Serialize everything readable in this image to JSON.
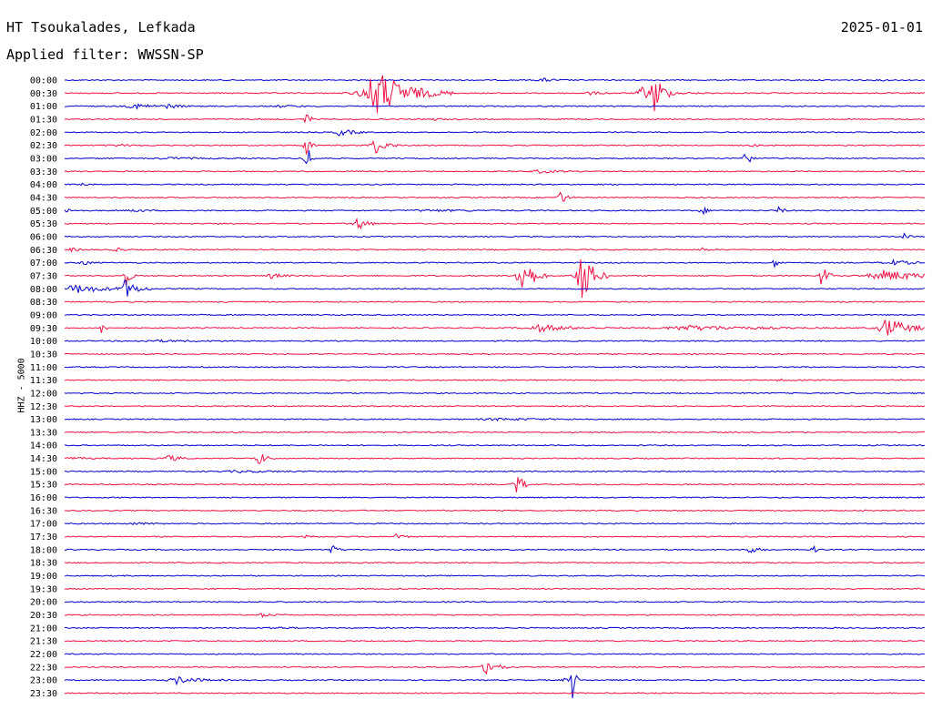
{
  "header": {
    "station": "HT Tsoukalades, Lefkada",
    "date": "2025-01-01",
    "filter_text": "Applied filter: WWSSN-SP"
  },
  "chart_data": {
    "type": "line",
    "title": "HT Tsoukalades, Lefkada",
    "subtitle": "Applied filter: WWSSN-SP",
    "ylabel": "HHZ - 5000",
    "colors": [
      "#0000cc",
      "#ee1144"
    ],
    "rows": [
      {
        "label": "00:00",
        "color": "#0000cc",
        "events": [
          {
            "x": 0.555,
            "amp": 2,
            "w": 0.012
          },
          {
            "x": 0.95,
            "amp": 1,
            "w": 0.005
          }
        ]
      },
      {
        "label": "00:30",
        "color": "#ee1144",
        "events": [
          {
            "x": 0.36,
            "amp": 28,
            "w": 0.03
          },
          {
            "x": 0.61,
            "amp": 2,
            "w": 0.01
          },
          {
            "x": 0.67,
            "amp": 8,
            "w": 0.01
          },
          {
            "x": 0.685,
            "amp": 28,
            "w": 0.006
          },
          {
            "x": 0.7,
            "amp": 2,
            "w": 0.02
          }
        ]
      },
      {
        "label": "01:00",
        "color": "#0000cc",
        "events": [
          {
            "x": 0.08,
            "amp": 3,
            "w": 0.02
          },
          {
            "x": 0.12,
            "amp": 2,
            "w": 0.01
          },
          {
            "x": 0.25,
            "amp": 1,
            "w": 0.02
          }
        ]
      },
      {
        "label": "01:30",
        "color": "#ee1144",
        "events": [
          {
            "x": 0.28,
            "amp": 8,
            "w": 0.004
          },
          {
            "x": 0.43,
            "amp": 1,
            "w": 0.01
          }
        ]
      },
      {
        "label": "02:00",
        "color": "#0000cc",
        "events": [
          {
            "x": 0.32,
            "amp": 5,
            "w": 0.01
          }
        ]
      },
      {
        "label": "02:30",
        "color": "#ee1144",
        "events": [
          {
            "x": 0.28,
            "amp": 12,
            "w": 0.004
          },
          {
            "x": 0.36,
            "amp": 10,
            "w": 0.01
          },
          {
            "x": 0.06,
            "amp": 1,
            "w": 0.02
          },
          {
            "x": 0.8,
            "amp": 1,
            "w": 0.01
          }
        ]
      },
      {
        "label": "03:00",
        "color": "#0000cc",
        "events": [
          {
            "x": 0.28,
            "amp": 27,
            "w": 0.003
          },
          {
            "x": 0.79,
            "amp": 14,
            "w": 0.004
          },
          {
            "x": 0.12,
            "amp": 1,
            "w": 0.03
          }
        ]
      },
      {
        "label": "03:30",
        "color": "#ee1144",
        "events": [
          {
            "x": 0.55,
            "amp": 2,
            "w": 0.015
          }
        ]
      },
      {
        "label": "04:00",
        "color": "#0000cc",
        "events": [
          {
            "x": 0.02,
            "amp": 2,
            "w": 0.005
          }
        ]
      },
      {
        "label": "04:30",
        "color": "#ee1144",
        "events": [
          {
            "x": 0.575,
            "amp": 10,
            "w": 0.005
          }
        ]
      },
      {
        "label": "05:00",
        "color": "#0000cc",
        "events": [
          {
            "x": 0.0,
            "amp": 2,
            "w": 0.008
          },
          {
            "x": 0.08,
            "amp": 2,
            "w": 0.01
          },
          {
            "x": 0.74,
            "amp": 6,
            "w": 0.004
          },
          {
            "x": 0.83,
            "amp": 5,
            "w": 0.003
          },
          {
            "x": 0.42,
            "amp": 1,
            "w": 0.05
          }
        ]
      },
      {
        "label": "05:30",
        "color": "#ee1144",
        "events": [
          {
            "x": 0.34,
            "amp": 8,
            "w": 0.008
          }
        ]
      },
      {
        "label": "06:00",
        "color": "#0000cc",
        "events": [
          {
            "x": 0.975,
            "amp": 6,
            "w": 0.003
          }
        ]
      },
      {
        "label": "06:30",
        "color": "#ee1144",
        "events": [
          {
            "x": 0.005,
            "amp": 3,
            "w": 0.005
          },
          {
            "x": 0.06,
            "amp": 4,
            "w": 0.004
          },
          {
            "x": 0.74,
            "amp": 3,
            "w": 0.004
          }
        ]
      },
      {
        "label": "07:00",
        "color": "#0000cc",
        "events": [
          {
            "x": 0.02,
            "amp": 3,
            "w": 0.006
          },
          {
            "x": 0.825,
            "amp": 5,
            "w": 0.004
          },
          {
            "x": 0.96,
            "amp": 3,
            "w": 0.02
          }
        ]
      },
      {
        "label": "07:30",
        "color": "#ee1144",
        "events": [
          {
            "x": 0.53,
            "amp": 28,
            "w": 0.01
          },
          {
            "x": 0.6,
            "amp": 35,
            "w": 0.01
          },
          {
            "x": 0.07,
            "amp": 14,
            "w": 0.004
          },
          {
            "x": 0.24,
            "amp": 3,
            "w": 0.01
          },
          {
            "x": 0.88,
            "amp": 18,
            "w": 0.004
          },
          {
            "x": 0.95,
            "amp": 6,
            "w": 0.04
          }
        ]
      },
      {
        "label": "08:00",
        "color": "#0000cc",
        "events": [
          {
            "x": 0.01,
            "amp": 5,
            "w": 0.03
          },
          {
            "x": 0.07,
            "amp": 10,
            "w": 0.01
          }
        ]
      },
      {
        "label": "08:30",
        "color": "#ee1144",
        "events": []
      },
      {
        "label": "09:00",
        "color": "#0000cc",
        "events": []
      },
      {
        "label": "09:30",
        "color": "#ee1144",
        "events": [
          {
            "x": 0.042,
            "amp": 12,
            "w": 0.002
          },
          {
            "x": 0.55,
            "amp": 4,
            "w": 0.03
          },
          {
            "x": 0.72,
            "amp": 3,
            "w": 0.06
          },
          {
            "x": 0.955,
            "amp": 12,
            "w": 0.02
          }
        ]
      },
      {
        "label": "10:00",
        "color": "#0000cc",
        "events": [
          {
            "x": 0.1,
            "amp": 1,
            "w": 0.05
          }
        ]
      },
      {
        "label": "10:30",
        "color": "#ee1144",
        "events": []
      },
      {
        "label": "11:00",
        "color": "#0000cc",
        "events": []
      },
      {
        "label": "11:30",
        "color": "#ee1144",
        "events": [
          {
            "x": 0.83,
            "amp": 1,
            "w": 0.01
          }
        ]
      },
      {
        "label": "12:00",
        "color": "#0000cc",
        "events": []
      },
      {
        "label": "12:30",
        "color": "#ee1144",
        "events": []
      },
      {
        "label": "13:00",
        "color": "#0000cc",
        "events": [
          {
            "x": 0.5,
            "amp": 1,
            "w": 0.05
          }
        ]
      },
      {
        "label": "13:30",
        "color": "#ee1144",
        "events": []
      },
      {
        "label": "14:00",
        "color": "#0000cc",
        "events": []
      },
      {
        "label": "14:30",
        "color": "#ee1144",
        "events": [
          {
            "x": 0.0,
            "amp": 1,
            "w": 0.03
          },
          {
            "x": 0.12,
            "amp": 4,
            "w": 0.01
          },
          {
            "x": 0.225,
            "amp": 9,
            "w": 0.006
          }
        ]
      },
      {
        "label": "15:00",
        "color": "#0000cc",
        "events": [
          {
            "x": 0.2,
            "amp": 1,
            "w": 0.04
          }
        ]
      },
      {
        "label": "15:30",
        "color": "#ee1144",
        "events": [
          {
            "x": 0.525,
            "amp": 14,
            "w": 0.006
          }
        ]
      },
      {
        "label": "16:00",
        "color": "#0000cc",
        "events": []
      },
      {
        "label": "16:30",
        "color": "#ee1144",
        "events": []
      },
      {
        "label": "17:00",
        "color": "#0000cc",
        "events": [
          {
            "x": 0.08,
            "amp": 1,
            "w": 0.02
          }
        ]
      },
      {
        "label": "17:30",
        "color": "#ee1144",
        "events": [
          {
            "x": 0.28,
            "amp": 5,
            "w": 0.004
          },
          {
            "x": 0.385,
            "amp": 5,
            "w": 0.005
          }
        ]
      },
      {
        "label": "18:00",
        "color": "#0000cc",
        "events": [
          {
            "x": 0.31,
            "amp": 6,
            "w": 0.005
          },
          {
            "x": 0.795,
            "amp": 4,
            "w": 0.008
          },
          {
            "x": 0.87,
            "amp": 5,
            "w": 0.003
          }
        ]
      },
      {
        "label": "18:30",
        "color": "#ee1144",
        "events": []
      },
      {
        "label": "19:00",
        "color": "#0000cc",
        "events": []
      },
      {
        "label": "19:30",
        "color": "#ee1144",
        "events": []
      },
      {
        "label": "20:00",
        "color": "#0000cc",
        "events": []
      },
      {
        "label": "20:30",
        "color": "#ee1144",
        "events": [
          {
            "x": 0.23,
            "amp": 2,
            "w": 0.01
          }
        ]
      },
      {
        "label": "21:00",
        "color": "#0000cc",
        "events": [
          {
            "x": 0.24,
            "amp": 1,
            "w": 0.02
          }
        ]
      },
      {
        "label": "21:30",
        "color": "#ee1144",
        "events": []
      },
      {
        "label": "22:00",
        "color": "#0000cc",
        "events": []
      },
      {
        "label": "22:30",
        "color": "#ee1144",
        "events": [
          {
            "x": 0.49,
            "amp": 12,
            "w": 0.008
          }
        ]
      },
      {
        "label": "23:00",
        "color": "#0000cc",
        "events": [
          {
            "x": 0.13,
            "amp": 4,
            "w": 0.02
          },
          {
            "x": 0.58,
            "amp": 3,
            "w": 0.003
          },
          {
            "x": 0.59,
            "amp": 28,
            "w": 0.002
          }
        ]
      },
      {
        "label": "23:30",
        "color": "#ee1144",
        "events": []
      }
    ]
  }
}
